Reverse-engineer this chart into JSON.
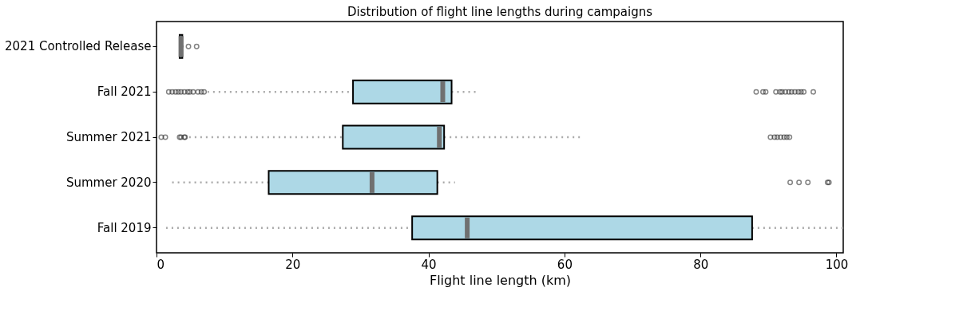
{
  "chart_data": {
    "type": "box",
    "title": "Distribution of flight line lengths during campaigns",
    "xlabel": "Flight line length (km)",
    "orientation": "horizontal",
    "grid": false,
    "categories": [
      "2021 Controlled Release",
      "Fall 2021",
      "Summer 2021",
      "Summer 2020",
      "Fall 2019"
    ],
    "xlim": [
      0,
      101
    ],
    "xticks": [
      0,
      20,
      40,
      60,
      80,
      100
    ],
    "series": [
      {
        "color": "#add8e6",
        "boxes": [
          {
            "low": 3.3,
            "q1": 3.4,
            "median": 3.6,
            "q3": 3.8,
            "high": 4.0,
            "outliers": [
              4.7,
              5.9
            ]
          },
          {
            "low": 7.5,
            "q1": 28.9,
            "median": 42.1,
            "q3": 43.4,
            "high": 47.2,
            "outliers": [
              1.8,
              2.3,
              2.8,
              3.2,
              3.6,
              4.1,
              4.6,
              4.9,
              5.4,
              6.1,
              6.6,
              7.0,
              88.2,
              89.2,
              89.6,
              91.1,
              91.7,
              92.0,
              92.5,
              93.0,
              93.4,
              93.9,
              94.4,
              94.8,
              95.2,
              96.6
            ]
          },
          {
            "low": 4.8,
            "q1": 27.4,
            "median": 41.6,
            "q3": 42.3,
            "high": 62.4,
            "outliers": [
              0.7,
              1.3,
              3.4,
              3.6,
              4.1,
              4.2,
              90.3,
              90.9,
              91.3,
              91.8,
              92.3,
              92.7,
              93.1
            ]
          },
          {
            "low": 2.3,
            "q1": 16.5,
            "median": 31.7,
            "q3": 41.3,
            "high": 43.9,
            "outliers": [
              93.2,
              94.5,
              95.8,
              98.7,
              98.9
            ]
          },
          {
            "low": 1.4,
            "q1": 37.6,
            "median": 45.7,
            "q3": 87.6,
            "high": 101
          }
        ]
      }
    ]
  }
}
